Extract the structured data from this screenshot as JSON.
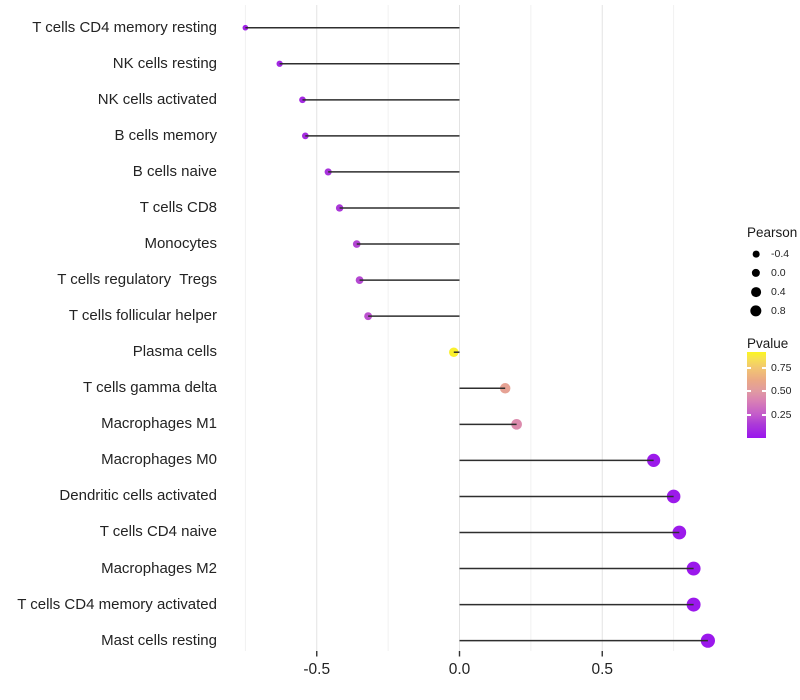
{
  "chart_data": {
    "type": "lollipop",
    "title": "",
    "xlabel": "",
    "ylabel": "",
    "x_tick_values": [
      -0.5,
      0.0,
      0.5
    ],
    "x_tick_labels": [
      "-0.5",
      "0.0",
      "0.5"
    ],
    "x_minor_gridlines": [
      -0.75,
      -0.25,
      0.25,
      0.75
    ],
    "xlim": [
      -0.84,
      0.96
    ],
    "grid": true,
    "rows": [
      {
        "label": "T cells CD4 memory resting",
        "pearson": -0.75,
        "pvalue": 0.05
      },
      {
        "label": "NK cells resting",
        "pearson": -0.63,
        "pvalue": 0.07
      },
      {
        "label": "NK cells activated",
        "pearson": -0.55,
        "pvalue": 0.08
      },
      {
        "label": "B cells memory",
        "pearson": -0.54,
        "pvalue": 0.09
      },
      {
        "label": "B cells naive",
        "pearson": -0.46,
        "pvalue": 0.12
      },
      {
        "label": "T cells CD8",
        "pearson": -0.42,
        "pvalue": 0.14
      },
      {
        "label": "Monocytes",
        "pearson": -0.36,
        "pvalue": 0.18
      },
      {
        "label": "T cells regulatory  Tregs",
        "pearson": -0.35,
        "pvalue": 0.19
      },
      {
        "label": "T cells follicular helper",
        "pearson": -0.32,
        "pvalue": 0.22
      },
      {
        "label": "Plasma cells",
        "pearson": -0.02,
        "pvalue": 0.9
      },
      {
        "label": "T cells gamma delta",
        "pearson": 0.16,
        "pvalue": 0.56
      },
      {
        "label": "Macrophages M1",
        "pearson": 0.2,
        "pvalue": 0.44
      },
      {
        "label": "Macrophages M0",
        "pearson": 0.68,
        "pvalue": 0.02
      },
      {
        "label": "Dendritic cells activated",
        "pearson": 0.75,
        "pvalue": 0.02
      },
      {
        "label": "T cells CD4 naive",
        "pearson": 0.77,
        "pvalue": 0.02
      },
      {
        "label": "Macrophages M2",
        "pearson": 0.82,
        "pvalue": 0.01
      },
      {
        "label": "T cells CD4 memory activated",
        "pearson": 0.82,
        "pvalue": 0.01
      },
      {
        "label": "Mast cells resting",
        "pearson": 0.87,
        "pvalue": 0.01
      }
    ],
    "legend_pearson": {
      "title": "Pearson",
      "items": [
        "-0.4",
        "0.0",
        "0.4",
        "0.8"
      ]
    },
    "legend_pvalue": {
      "title": "Pvalue",
      "tick_labels": [
        "0.75",
        "0.50",
        "0.25"
      ],
      "tick_values": [
        0.75,
        0.5,
        0.25
      ],
      "range": [
        0,
        0.92
      ],
      "gradient_stops": [
        {
          "p": 0.0,
          "color": "#9A15EE"
        },
        {
          "p": 0.15,
          "color": "#AC3BD7"
        },
        {
          "p": 0.25,
          "color": "#C35BCB"
        },
        {
          "p": 0.4,
          "color": "#D981B4"
        },
        {
          "p": 0.5,
          "color": "#E09AA2"
        },
        {
          "p": 0.62,
          "color": "#EBA985"
        },
        {
          "p": 0.75,
          "color": "#F2C671"
        },
        {
          "p": 0.85,
          "color": "#F7E251"
        },
        {
          "p": 0.92,
          "color": "#FBF51F"
        }
      ]
    },
    "colors": {
      "stem": "#2e2e2e",
      "grid_major": "#e3e3e3",
      "grid_minor": "#f1f1f1",
      "axis_tick": "#333333",
      "text": "#232323",
      "background": "#ffffff"
    }
  }
}
